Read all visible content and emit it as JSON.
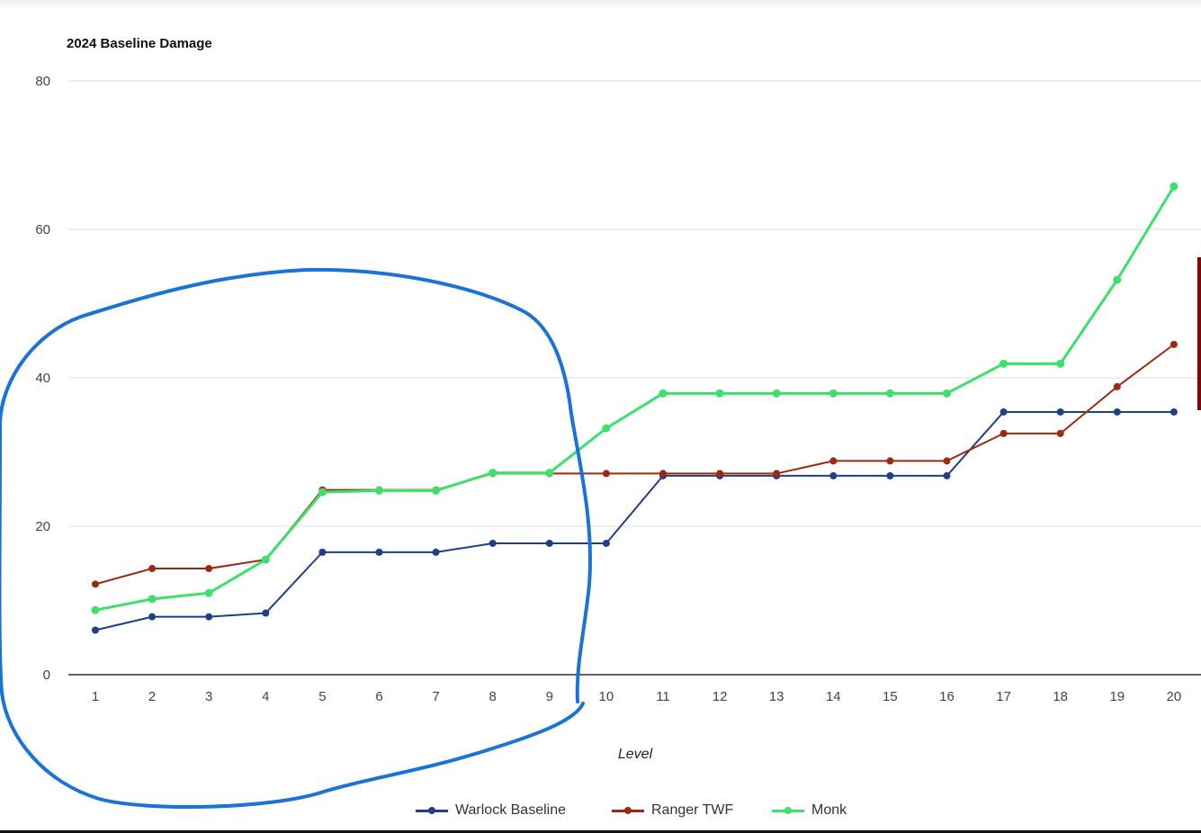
{
  "chart_data": {
    "type": "line",
    "title": "2024 Baseline Damage",
    "xlabel": "Level",
    "ylabel": "",
    "x": [
      1,
      2,
      3,
      4,
      5,
      6,
      7,
      8,
      9,
      10,
      11,
      12,
      13,
      14,
      15,
      16,
      17,
      18,
      19,
      20
    ],
    "ylim": [
      0,
      80
    ],
    "yticks": [
      0,
      20,
      40,
      60,
      80
    ],
    "grid": true,
    "legend_position": "bottom",
    "series": [
      {
        "name": "Warlock Baseline",
        "color": "#1f3f8a",
        "values": [
          6,
          7.8,
          7.8,
          8.3,
          16.5,
          16.5,
          16.5,
          17.7,
          17.7,
          17.7,
          26.8,
          26.8,
          26.8,
          26.8,
          26.8,
          26.8,
          35.4,
          35.4,
          35.4,
          35.4
        ]
      },
      {
        "name": "Ranger TWF",
        "color": "#9b2a10",
        "values": [
          12.2,
          14.3,
          14.3,
          15.5,
          24.9,
          24.9,
          24.9,
          27.1,
          27.1,
          27.1,
          27.1,
          27.1,
          27.1,
          28.8,
          28.8,
          28.8,
          32.5,
          32.5,
          38.8,
          44.5
        ]
      },
      {
        "name": "Monk",
        "color": "#3de06a",
        "values": [
          8.7,
          10.2,
          11,
          15.5,
          24.6,
          24.8,
          24.8,
          27.2,
          27.2,
          33.2,
          37.9,
          37.9,
          37.9,
          37.9,
          37.9,
          37.9,
          41.9,
          41.9,
          53.2,
          65.8
        ]
      }
    ]
  },
  "annotation": {
    "type": "hand-drawn-loop",
    "color": "#1a73d6"
  }
}
